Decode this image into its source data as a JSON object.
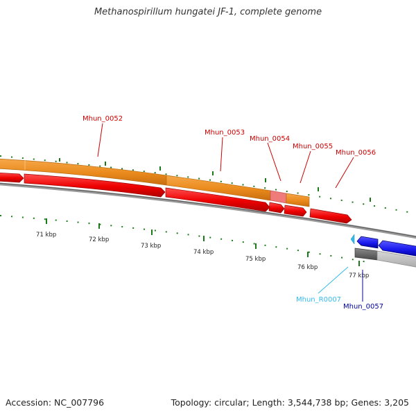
{
  "title": "Methanospirillum hungatei JF-1, complete genome",
  "accession_text": "Accession: NC_007796",
  "summary_text": "Topology: circular; Length: 3,544,738 bp; Genes: 3,205",
  "colors": {
    "cds_label": "#cc0000",
    "rrna_label": "#33bbee",
    "reverse_cds_label": "#000099",
    "tick_green": "#1a7a1a",
    "backbone": "#888888",
    "orange": "#ef8c1a",
    "red": "#ff0000",
    "blue": "#1a1aee",
    "light_blue": "#33bbee",
    "grey": "#777777"
  },
  "scale_labels": [
    "71 kbp",
    "72 kbp",
    "73 kbp",
    "74 kbp",
    "75 kbp",
    "76 kbp",
    "77 kbp"
  ],
  "genes_forward": [
    {
      "id": "Mhun_0052",
      "label": "Mhun_0052"
    },
    {
      "id": "Mhun_0053",
      "label": "Mhun_0053"
    },
    {
      "id": "Mhun_0054",
      "label": "Mhun_0054"
    },
    {
      "id": "Mhun_0055",
      "label": "Mhun_0055"
    },
    {
      "id": "Mhun_0056",
      "label": "Mhun_0056"
    }
  ],
  "genes_reverse": [
    {
      "id": "Mhun_R0007",
      "label": "Mhun_R0007",
      "icon": "light-blue-arrow-icon"
    },
    {
      "id": "Mhun_0057",
      "label": "Mhun_0057",
      "icon": "blue-arrow-icon"
    }
  ]
}
